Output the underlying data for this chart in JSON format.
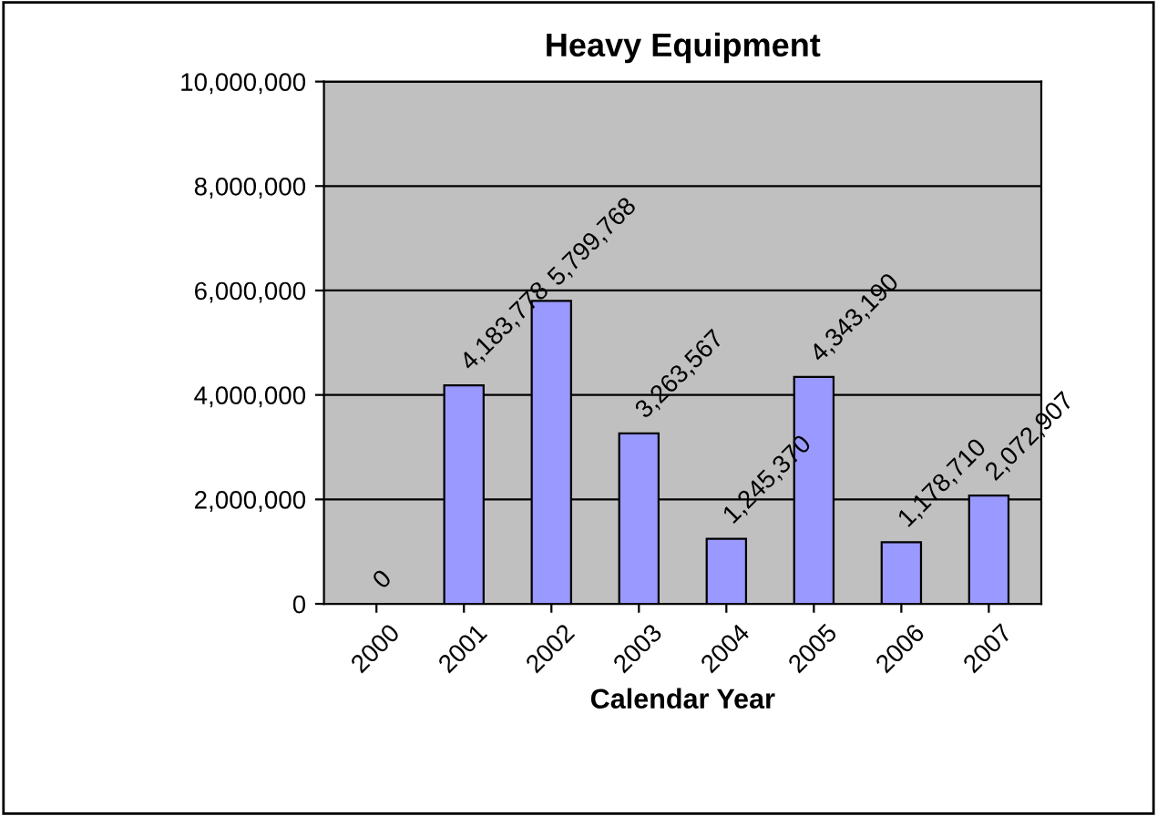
{
  "chart_data": {
    "type": "bar",
    "title": "Heavy Equipment",
    "xlabel": "Calendar Year",
    "categories": [
      "2000",
      "2001",
      "2002",
      "2003",
      "2004",
      "2005",
      "2006",
      "2007"
    ],
    "values": [
      0,
      4183778,
      5799768,
      3263567,
      1245370,
      4343190,
      1178710,
      2072907
    ],
    "color": "#9999ff",
    "ylim": [
      0,
      10000000
    ],
    "yticks": [
      {
        "value": 0,
        "label": "0"
      },
      {
        "value": 2000000,
        "label": "2,000,000"
      },
      {
        "value": 4000000,
        "label": "4,000,000"
      },
      {
        "value": 6000000,
        "label": "6,000,000"
      },
      {
        "value": 8000000,
        "label": "8,000,000"
      },
      {
        "value": 10000000,
        "label": "10,000,000"
      }
    ],
    "value_labels": [
      "0",
      "4,183,778",
      "5,799,768",
      "3,263,567",
      "1,245,370",
      "4,343,190",
      "1,178,710",
      "2,072,907"
    ],
    "grid": "y"
  }
}
